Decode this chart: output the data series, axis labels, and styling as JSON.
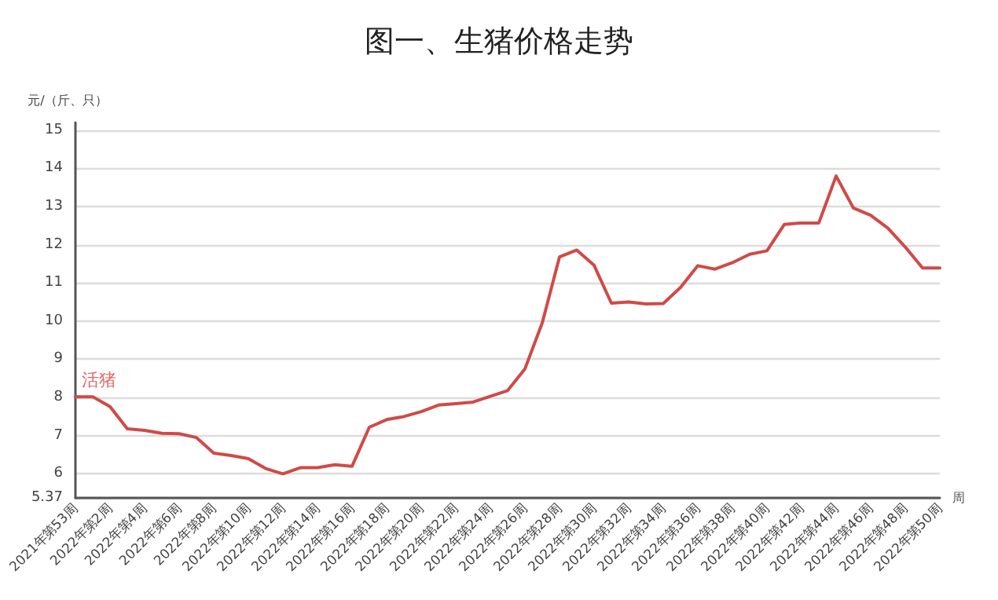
{
  "chart_data": {
    "type": "line",
    "title": "图一、生猪价格走势",
    "ylabel": "元/（斤、只）",
    "xlabel": "周",
    "categories": [
      "2021年第53周",
      null,
      "2022年第2周",
      null,
      "2022年第4周",
      null,
      "2022年第6周",
      null,
      "2022年第8周",
      null,
      "2022年第10周",
      null,
      "2022年第12周",
      null,
      "2022年第14周",
      null,
      "2022年第16周",
      null,
      "2022年第18周",
      null,
      "2022年第20周",
      null,
      "2022年第22周",
      null,
      "2022年第24周",
      null,
      "2022年第26周",
      null,
      "2022年第28周",
      null,
      "2022年第30周",
      null,
      "2022年第32周",
      null,
      "2022年第34周",
      null,
      "2022年第36周",
      null,
      "2022年第38周",
      null,
      "2022年第40周",
      null,
      "2022年第42周",
      null,
      "2022年第44周",
      null,
      "2022年第46周",
      null,
      "2022年第48周",
      null,
      "2022年第50周"
    ],
    "series": [
      {
        "name": "活猪",
        "color": "#d04a47",
        "values": [
          8.02,
          8.02,
          7.76,
          7.18,
          7.14,
          7.06,
          7.05,
          6.95,
          6.54,
          6.48,
          6.4,
          6.14,
          6.0,
          6.16,
          6.16,
          6.24,
          6.2,
          7.22,
          7.42,
          7.5,
          7.63,
          7.8,
          7.84,
          7.88,
          8.03,
          8.18,
          8.75,
          9.95,
          11.68,
          11.86,
          11.46,
          10.47,
          10.5,
          10.45,
          10.46,
          10.88,
          11.45,
          11.36,
          11.53,
          11.75,
          11.84,
          12.53,
          12.57,
          12.57,
          13.8,
          12.96,
          12.77,
          12.43,
          11.94,
          11.39,
          11.39
        ]
      }
    ],
    "ylim": [
      5.37,
      15.2
    ],
    "yticks": [
      5.37,
      6,
      7,
      8,
      9,
      10,
      11,
      12,
      13,
      14,
      15
    ],
    "grid": "y",
    "legend": false,
    "marker": "none",
    "line_style": "solid"
  }
}
